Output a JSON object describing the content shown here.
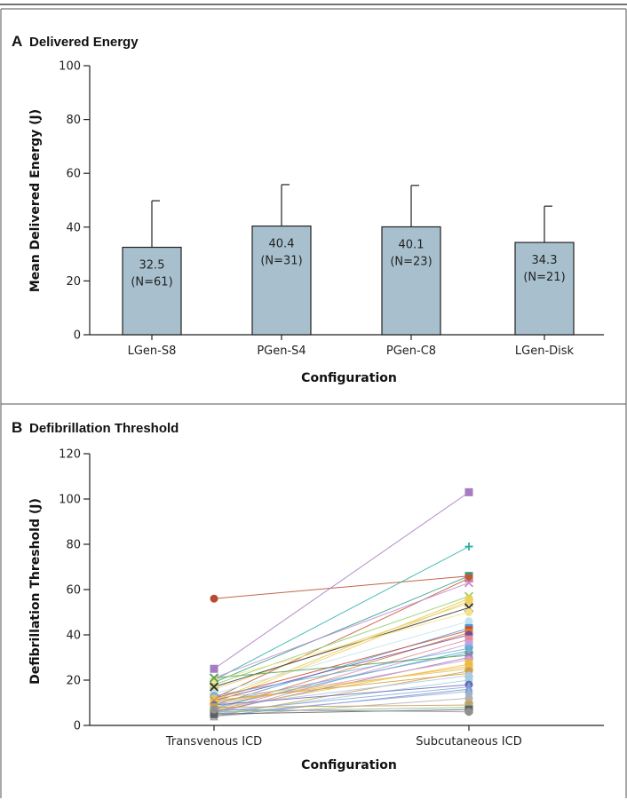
{
  "chart_data": [
    {
      "type": "bar",
      "panel": "A",
      "title": "Delivered Energy",
      "xlabel": "Configuration",
      "ylabel": "Mean Delivered Energy (J)",
      "ylim": [
        0,
        100
      ],
      "yticks": [
        0,
        20,
        40,
        60,
        80,
        100
      ],
      "categories": [
        "LGen-S8",
        "PGen-S4",
        "PGen-C8",
        "LGen-Disk"
      ],
      "values": [
        32.5,
        40.4,
        40.1,
        34.3
      ],
      "error_upper": [
        49.8,
        55.8,
        55.5,
        47.8
      ],
      "value_labels": [
        "32.5",
        "40.4",
        "40.1",
        "34.3"
      ],
      "n_labels": [
        "(N=61)",
        "(N=31)",
        "(N=23)",
        "(N=21)"
      ],
      "bar_color": "#a8c0ce",
      "grid": false
    },
    {
      "type": "line",
      "panel": "B",
      "title": "Defibrillation Threshold",
      "xlabel": "Configuration",
      "ylabel": "Defibrillation Threshold (J)",
      "ylim": [
        0,
        120
      ],
      "yticks": [
        0,
        20,
        40,
        60,
        80,
        100,
        120
      ],
      "categories": [
        "Transvenous ICD",
        "Subcutaneous ICD"
      ],
      "grid": false,
      "series": [
        {
          "values": [
            56,
            66
          ],
          "color": "#b84a2e",
          "marker": "circle"
        },
        {
          "values": [
            25,
            103
          ],
          "color": "#a77cc0",
          "marker": "square"
        },
        {
          "values": [
            20,
            79
          ],
          "color": "#2ab0a8",
          "marker": "plus"
        },
        {
          "values": [
            19,
            66
          ],
          "color": "#2e9e8a",
          "marker": "square"
        },
        {
          "values": [
            12,
            65
          ],
          "color": "#c05a30",
          "marker": "square"
        },
        {
          "values": [
            21,
            63
          ],
          "color": "#c78ad0",
          "marker": "x"
        },
        {
          "values": [
            18,
            57
          ],
          "color": "#8ecf6a",
          "marker": "x"
        },
        {
          "values": [
            11,
            56
          ],
          "color": "#e8c94a",
          "marker": "circle"
        },
        {
          "values": [
            10,
            55
          ],
          "color": "#f0d060",
          "marker": "square"
        },
        {
          "values": [
            16,
            54
          ],
          "color": "#ead070",
          "marker": "x"
        },
        {
          "values": [
            17,
            52
          ],
          "color": "#333333",
          "marker": "x"
        },
        {
          "values": [
            20,
            50
          ],
          "color": "#f5e38a",
          "marker": "circle"
        },
        {
          "values": [
            14,
            46
          ],
          "color": "#bfe3f0",
          "marker": "circle"
        },
        {
          "values": [
            9,
            43
          ],
          "color": "#4a9ad8",
          "marker": "square"
        },
        {
          "values": [
            12,
            42
          ],
          "color": "#cc4a2a",
          "marker": "square"
        },
        {
          "values": [
            7,
            41
          ],
          "color": "#d07a3a",
          "marker": "square"
        },
        {
          "values": [
            11,
            40
          ],
          "color": "#7a4a9a",
          "marker": "circle"
        },
        {
          "values": [
            6,
            38
          ],
          "color": "#e08a9a",
          "marker": "square"
        },
        {
          "values": [
            5,
            36
          ],
          "color": "#c9a0d8",
          "marker": "square"
        },
        {
          "values": [
            13,
            34
          ],
          "color": "#6ab0e0",
          "marker": "circle"
        },
        {
          "values": [
            8,
            33
          ],
          "color": "#40b8c0",
          "marker": "x"
        },
        {
          "values": [
            10,
            32
          ],
          "color": "#90a0d8",
          "marker": "circle"
        },
        {
          "values": [
            21,
            31
          ],
          "color": "#55a055",
          "marker": "x"
        },
        {
          "values": [
            6,
            30
          ],
          "color": "#9a7ac8",
          "marker": "circle"
        },
        {
          "values": [
            9,
            29
          ],
          "color": "#d8a0b8",
          "marker": "circle"
        },
        {
          "values": [
            7,
            27
          ],
          "color": "#f0c040",
          "marker": "square"
        },
        {
          "values": [
            10,
            26
          ],
          "color": "#f5b830",
          "marker": "square"
        },
        {
          "values": [
            12,
            25
          ],
          "color": "#e0c070",
          "marker": "circle"
        },
        {
          "values": [
            4,
            24
          ],
          "color": "#c8a050",
          "marker": "circle"
        },
        {
          "values": [
            11,
            23
          ],
          "color": "#d0a040",
          "marker": "x"
        },
        {
          "values": [
            8,
            22
          ],
          "color": "#b0c8e8",
          "marker": "circle"
        },
        {
          "values": [
            5,
            20
          ],
          "color": "#a0d0d8",
          "marker": "circle"
        },
        {
          "values": [
            9,
            18
          ],
          "color": "#6a6ab8",
          "marker": "circle"
        },
        {
          "values": [
            6,
            17
          ],
          "color": "#8aa8d8",
          "marker": "triangle"
        },
        {
          "values": [
            4,
            16
          ],
          "color": "#7090c8",
          "marker": "triangle"
        },
        {
          "values": [
            5,
            15
          ],
          "color": "#9ab0d8",
          "marker": "triangle"
        },
        {
          "values": [
            4,
            12
          ],
          "color": "#b0b0b0",
          "marker": "circle"
        },
        {
          "values": [
            8,
            9
          ],
          "color": "#c8a050",
          "marker": "square"
        },
        {
          "values": [
            6,
            8
          ],
          "color": "#80c0a0",
          "marker": "x"
        },
        {
          "values": [
            5,
            7
          ],
          "color": "#606060",
          "marker": "square"
        },
        {
          "values": [
            7,
            6
          ],
          "color": "#909090",
          "marker": "circle"
        }
      ]
    }
  ]
}
